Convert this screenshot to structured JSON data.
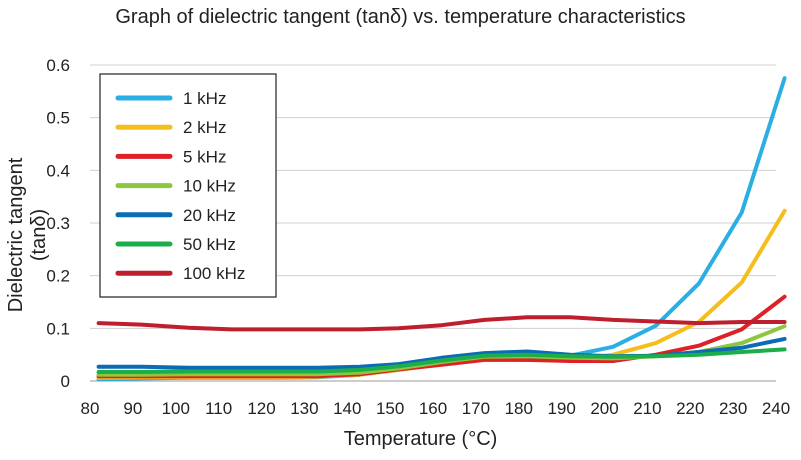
{
  "chart_data": {
    "type": "line",
    "title": "Graph of dielectric tangent (tanδ) vs. temperature characteristics",
    "xlabel": "Temperature (°C)",
    "ylabel": "Dielectric tangent (tanδ)",
    "xlim": [
      80,
      240
    ],
    "ylim": [
      0,
      0.6
    ],
    "x_ticks": [
      80,
      90,
      100,
      110,
      120,
      130,
      140,
      150,
      160,
      170,
      180,
      190,
      200,
      210,
      220,
      230,
      240
    ],
    "y_ticks": [
      0,
      0.1,
      0.2,
      0.3,
      0.4,
      0.5,
      0.6
    ],
    "y_tick_labels": [
      "0",
      "0.1",
      "0.2",
      "0.3",
      "0.4",
      "0.5",
      "0.6"
    ],
    "grid": "horizontal",
    "legend_position": "top-left",
    "x": [
      82,
      92,
      103,
      113,
      123,
      133,
      143,
      152,
      162,
      172,
      182,
      192,
      202,
      212,
      222,
      232,
      242
    ],
    "series": [
      {
        "name": "1 kHz",
        "color": "#2aaee3",
        "values": [
          0.003,
          0.005,
          0.006,
          0.006,
          0.006,
          0.007,
          0.012,
          0.022,
          0.033,
          0.043,
          0.047,
          0.048,
          0.065,
          0.105,
          0.185,
          0.32,
          0.575
        ]
      },
      {
        "name": "2 kHz",
        "color": "#f6be1a",
        "values": [
          0.006,
          0.007,
          0.007,
          0.007,
          0.007,
          0.008,
          0.012,
          0.021,
          0.032,
          0.041,
          0.04,
          0.04,
          0.05,
          0.072,
          0.112,
          0.187,
          0.323
        ]
      },
      {
        "name": "5 kHz",
        "color": "#de2127",
        "values": [
          0.009,
          0.009,
          0.009,
          0.009,
          0.009,
          0.009,
          0.013,
          0.022,
          0.031,
          0.04,
          0.04,
          0.038,
          0.038,
          0.05,
          0.067,
          0.098,
          0.16
        ]
      },
      {
        "name": "10 kHz",
        "color": "#8dc63f",
        "values": [
          0.012,
          0.012,
          0.013,
          0.013,
          0.013,
          0.013,
          0.016,
          0.024,
          0.036,
          0.046,
          0.047,
          0.044,
          0.043,
          0.047,
          0.055,
          0.072,
          0.104
        ]
      },
      {
        "name": "20 kHz",
        "color": "#0a6cb4",
        "values": [
          0.027,
          0.027,
          0.025,
          0.025,
          0.025,
          0.025,
          0.027,
          0.032,
          0.044,
          0.053,
          0.056,
          0.05,
          0.047,
          0.048,
          0.055,
          0.063,
          0.08
        ]
      },
      {
        "name": "50 kHz",
        "color": "#1cae4a",
        "values": [
          0.017,
          0.017,
          0.018,
          0.018,
          0.018,
          0.018,
          0.021,
          0.028,
          0.039,
          0.048,
          0.05,
          0.047,
          0.046,
          0.047,
          0.05,
          0.055,
          0.06
        ]
      },
      {
        "name": "100 kHz",
        "color": "#be1e2d",
        "values": [
          0.11,
          0.107,
          0.101,
          0.098,
          0.098,
          0.098,
          0.098,
          0.1,
          0.106,
          0.116,
          0.121,
          0.121,
          0.116,
          0.113,
          0.11,
          0.112,
          0.112
        ]
      }
    ]
  }
}
